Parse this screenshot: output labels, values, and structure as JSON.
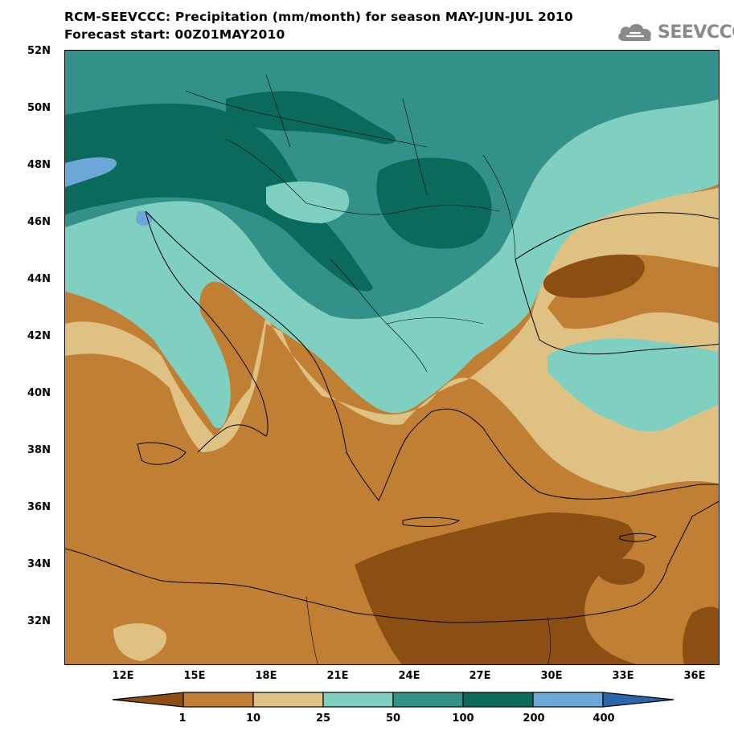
{
  "header": {
    "title_line1": "RCM-SEEVCCC: Precipitation (mm/month) for season MAY-JUN-JUL 2010",
    "title_line2": "Forecast start: 00Z01MAY2010"
  },
  "logo": {
    "text": "SEEVCCC",
    "icon": "cloud-icon"
  },
  "axes": {
    "lat_labels": [
      "52N",
      "50N",
      "48N",
      "46N",
      "44N",
      "42N",
      "40N",
      "38N",
      "36N",
      "34N",
      "32N"
    ],
    "lon_labels": [
      "12E",
      "15E",
      "18E",
      "21E",
      "24E",
      "27E",
      "30E",
      "33E",
      "36E"
    ]
  },
  "legend": {
    "thresholds": [
      "1",
      "10",
      "25",
      "50",
      "100",
      "200",
      "400"
    ],
    "colors": [
      "#8b4f14",
      "#c07f33",
      "#dfc184",
      "#7fd0c1",
      "#32928a",
      "#0a6a5c",
      "#6ca7d8",
      "#2c66a8"
    ]
  },
  "map": {
    "region": "Southeast Europe and Eastern Mediterranean",
    "lat_range": [
      "30.5N",
      "52N"
    ],
    "lon_range": [
      "9.5E",
      "37E"
    ]
  }
}
